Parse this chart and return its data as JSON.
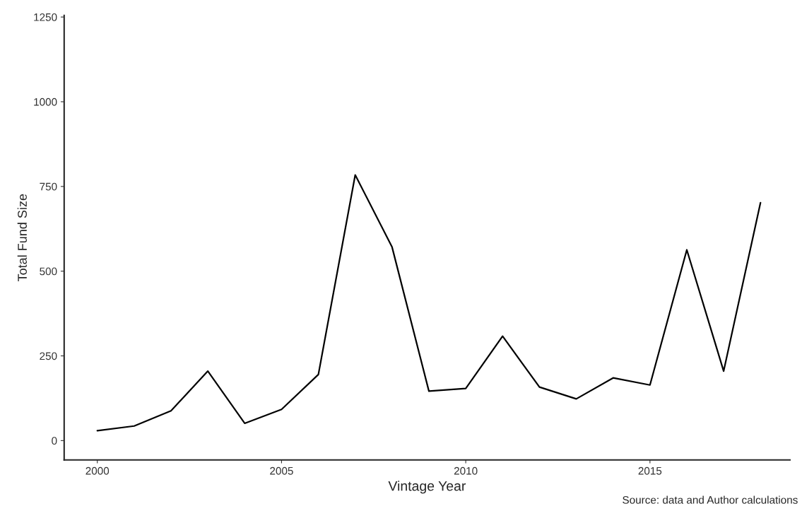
{
  "chart_data": {
    "type": "line",
    "xlabel": "Vintage Year",
    "ylabel": "Total Fund Size",
    "x": [
      2000,
      2001,
      2002,
      2003,
      2004,
      2005,
      2006,
      2007,
      2008,
      2009,
      2010,
      2011,
      2012,
      2013,
      2014,
      2015,
      2016,
      2017,
      2018
    ],
    "series": [
      {
        "color": "#000000",
        "values": [
          29,
          43,
          88,
          205,
          51,
          92,
          195,
          784,
          571,
          146,
          154,
          308,
          158,
          123,
          185,
          164,
          563,
          205,
          702
        ]
      }
    ],
    "xlim": [
      1999.1,
      2018.8
    ],
    "ylim": [
      -57,
      1255
    ],
    "xticks": [
      2000,
      2005,
      2010,
      2015
    ],
    "yticks": [
      0,
      250,
      500,
      750,
      1000,
      1250
    ],
    "grid": false,
    "legend": false,
    "marker": "none",
    "line_style": "solid",
    "annotations": [
      "Source: data and Author calculations"
    ]
  }
}
